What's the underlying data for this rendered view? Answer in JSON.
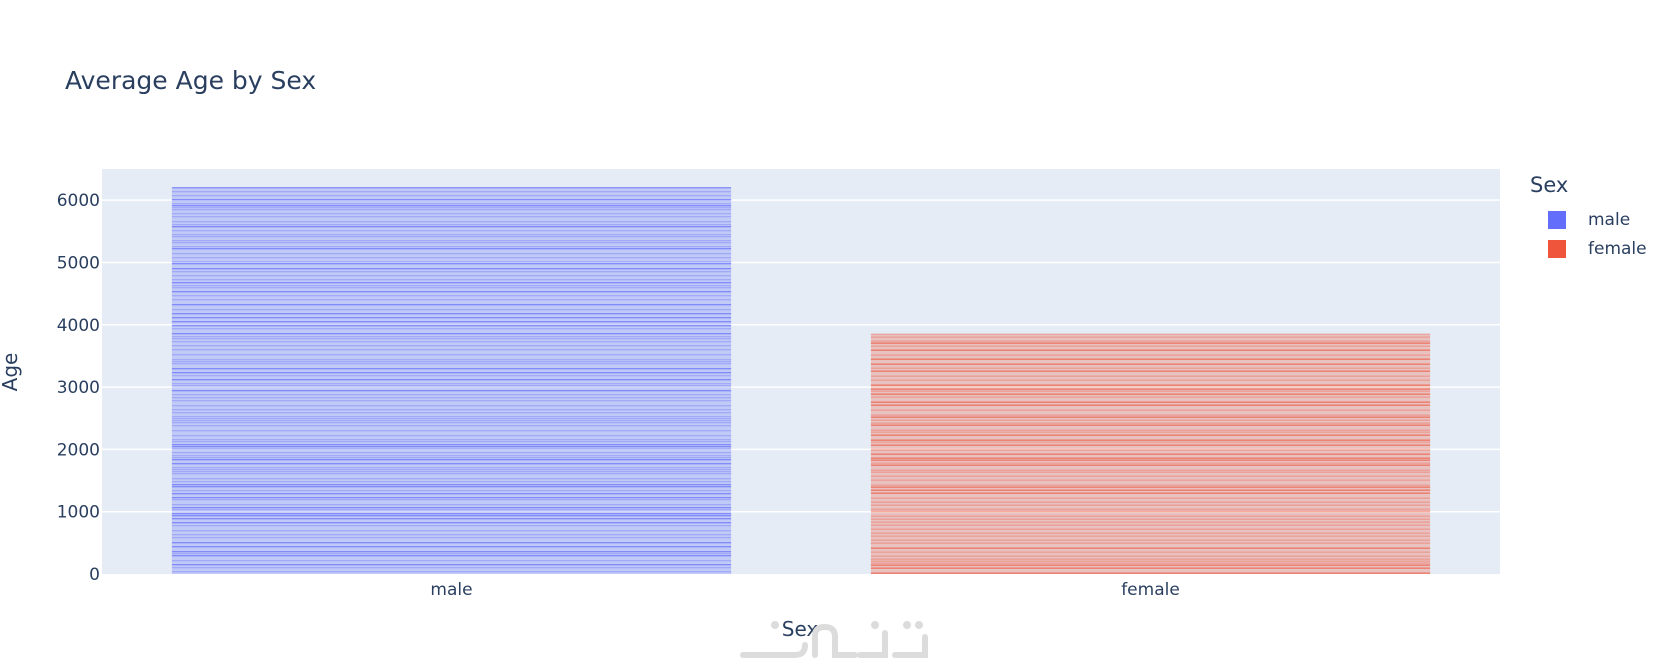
{
  "chart_data": {
    "type": "bar",
    "title": "Average Age by Sex",
    "xlabel": "Sex",
    "ylabel": "Age",
    "categories": [
      "male",
      "female"
    ],
    "values": [
      6200,
      3850
    ],
    "colors": [
      "#636efa",
      "#ef553b"
    ],
    "ylim": [
      0,
      6500
    ],
    "yticks": [
      0,
      1000,
      2000,
      3000,
      4000,
      5000,
      6000
    ],
    "grid": true,
    "legend": {
      "title": "Sex",
      "placement": "right",
      "items": [
        {
          "label": "male",
          "color": "#636efa"
        },
        {
          "label": "female",
          "color": "#ef553b"
        }
      ]
    }
  },
  "style": {
    "plot_background": "#e5ecf6",
    "text_color": "#2a3f5f",
    "grid_color": "#ffffff"
  }
}
